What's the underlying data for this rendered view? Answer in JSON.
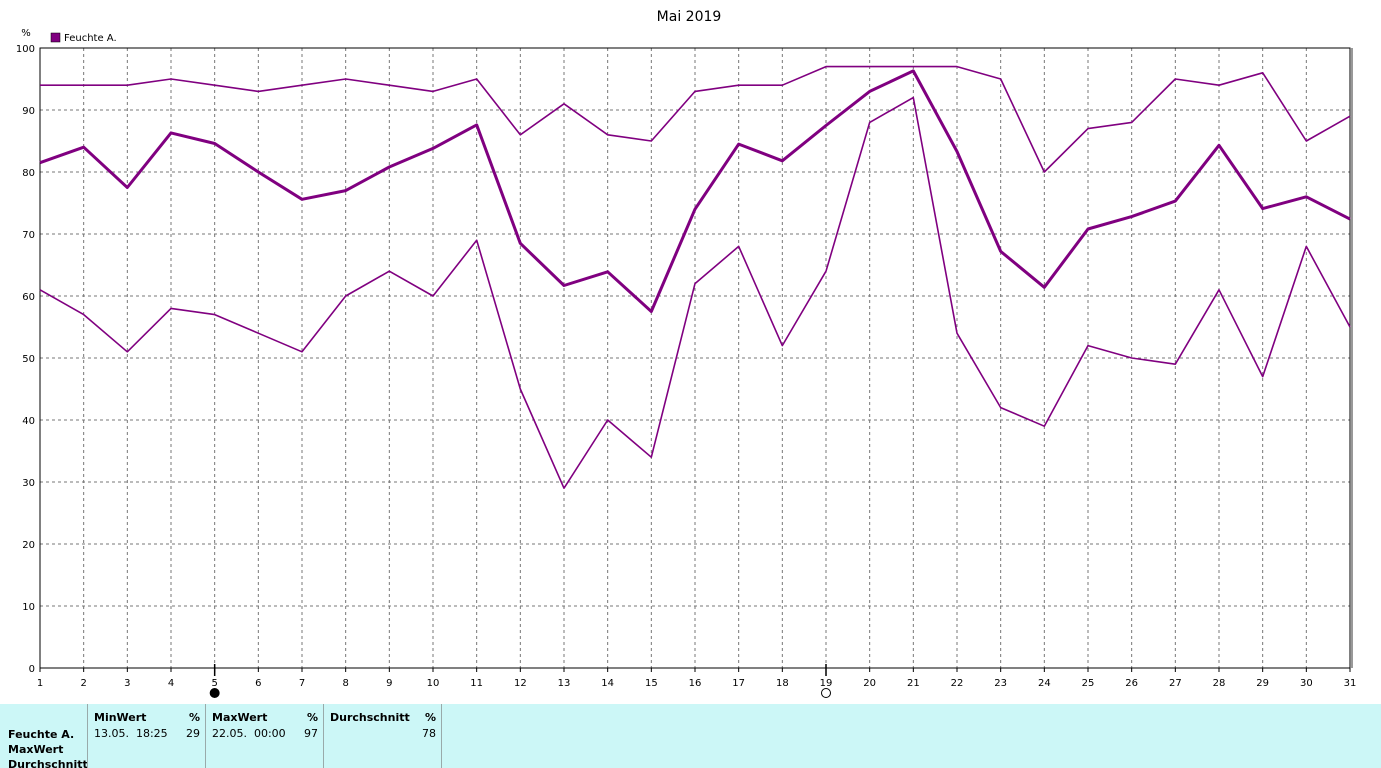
{
  "chart_data": {
    "type": "line",
    "title": "Mai 2019",
    "ylabel": "%",
    "ylim": [
      0,
      100
    ],
    "yticks": [
      0,
      10,
      20,
      30,
      40,
      50,
      60,
      70,
      80,
      90,
      100
    ],
    "x": [
      1,
      2,
      3,
      4,
      5,
      6,
      7,
      8,
      9,
      10,
      11,
      12,
      13,
      14,
      15,
      16,
      17,
      18,
      19,
      20,
      21,
      22,
      23,
      24,
      25,
      26,
      27,
      28,
      29,
      30,
      31
    ],
    "xlim": [
      1,
      31
    ],
    "grid": true,
    "legend": {
      "position": "top-left",
      "entries": [
        "Feuchte A."
      ]
    },
    "series": [
      {
        "role": "max",
        "values": [
          94,
          94,
          94,
          95,
          94,
          93,
          94,
          95,
          94,
          93,
          95,
          86,
          91,
          86,
          85,
          93,
          94,
          94,
          97,
          97,
          97,
          97,
          95,
          80,
          87,
          88,
          95,
          94,
          96,
          85,
          89
        ]
      },
      {
        "role": "average",
        "values": [
          81.5,
          84,
          77.5,
          86.3,
          84.6,
          80,
          75.6,
          77,
          80.8,
          83.8,
          87.6,
          68.5,
          61.7,
          63.9,
          57.5,
          74,
          84.5,
          81.8,
          87.5,
          93,
          96.3,
          83.3,
          67.2,
          61.4,
          70.8,
          72.8,
          75.3,
          84.3,
          74.1,
          76,
          72.4
        ]
      },
      {
        "role": "min",
        "values": [
          61,
          57,
          51,
          58,
          57,
          54,
          51,
          60,
          64,
          60,
          69,
          45,
          29,
          40,
          34,
          62,
          68,
          52,
          64,
          88,
          92,
          54,
          42,
          39,
          52,
          50,
          49,
          61,
          47,
          68,
          55
        ]
      }
    ],
    "moon_markers": [
      {
        "day": 5,
        "phase": "new-moon"
      },
      {
        "day": 19,
        "phase": "full-moon"
      }
    ],
    "line_color": "#800080"
  },
  "stats": {
    "row_labels": [
      "Feuchte A.",
      "MaxWert",
      "Durchschnitt"
    ],
    "columns": [
      {
        "header": "MinWert",
        "unit": "%",
        "when": "13.05.  18:25",
        "value": "29"
      },
      {
        "header": "MaxWert",
        "unit": "%",
        "when": "22.05.  00:00",
        "value": "97"
      },
      {
        "header": "Durchschnitt",
        "unit": "%",
        "when": "",
        "value": "78"
      }
    ],
    "background": "#ccf7f7"
  }
}
